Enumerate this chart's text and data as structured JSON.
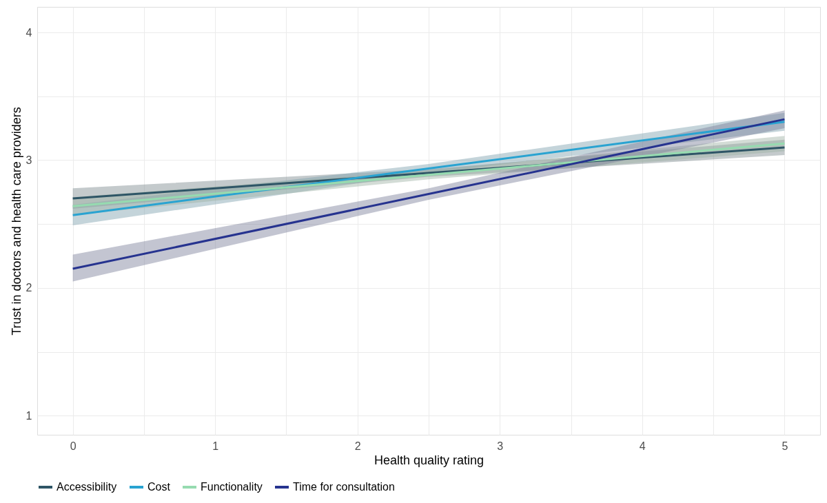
{
  "chart_data": {
    "type": "line",
    "xlabel": "Health quality rating",
    "ylabel": "Trust in doctors and health care providers",
    "xlim": [
      -0.25,
      5.25
    ],
    "ylim": [
      0.85,
      4.2
    ],
    "xticks": [
      0,
      {
        "value": 0.5,
        "label": null
      },
      1,
      {
        "value": 1.5,
        "label": null
      },
      2,
      {
        "value": 2.5,
        "label": null
      },
      3,
      {
        "value": 3.5,
        "label": null
      },
      4,
      {
        "value": 4.5,
        "label": null
      },
      5
    ],
    "yticks": [
      1,
      {
        "value": 1.5,
        "label": null
      },
      2,
      {
        "value": 2.5,
        "label": null
      },
      3,
      {
        "value": 3.5,
        "label": null
      },
      4
    ],
    "grid": true,
    "legend": "bottom",
    "line_style": "solid",
    "series": [
      {
        "name": "Accessibility",
        "color": "#2e5566",
        "x": [
          0,
          2.5,
          5
        ],
        "values": [
          2.7,
          2.9,
          3.1
        ],
        "lower": [
          2.62,
          2.87,
          3.04
        ],
        "upper": [
          2.78,
          2.93,
          3.16
        ]
      },
      {
        "name": "Cost",
        "color": "#29a3d1",
        "x": [
          0,
          2.5,
          5
        ],
        "values": [
          2.57,
          2.935,
          3.3
        ],
        "lower": [
          2.49,
          2.9,
          3.23
        ],
        "upper": [
          2.65,
          2.97,
          3.37
        ]
      },
      {
        "name": "Functionality",
        "color": "#96dbb0",
        "x": [
          0,
          2.5,
          5
        ],
        "values": [
          2.64,
          2.885,
          3.13
        ],
        "lower": [
          2.57,
          2.85,
          3.07
        ],
        "upper": [
          2.71,
          2.92,
          3.19
        ]
      },
      {
        "name": "Time for consultation",
        "color": "#26338f",
        "x": [
          0,
          2.5,
          5
        ],
        "values": [
          2.15,
          2.735,
          3.32
        ],
        "lower": [
          2.05,
          2.69,
          3.25
        ],
        "upper": [
          2.26,
          2.78,
          3.39
        ]
      }
    ]
  }
}
